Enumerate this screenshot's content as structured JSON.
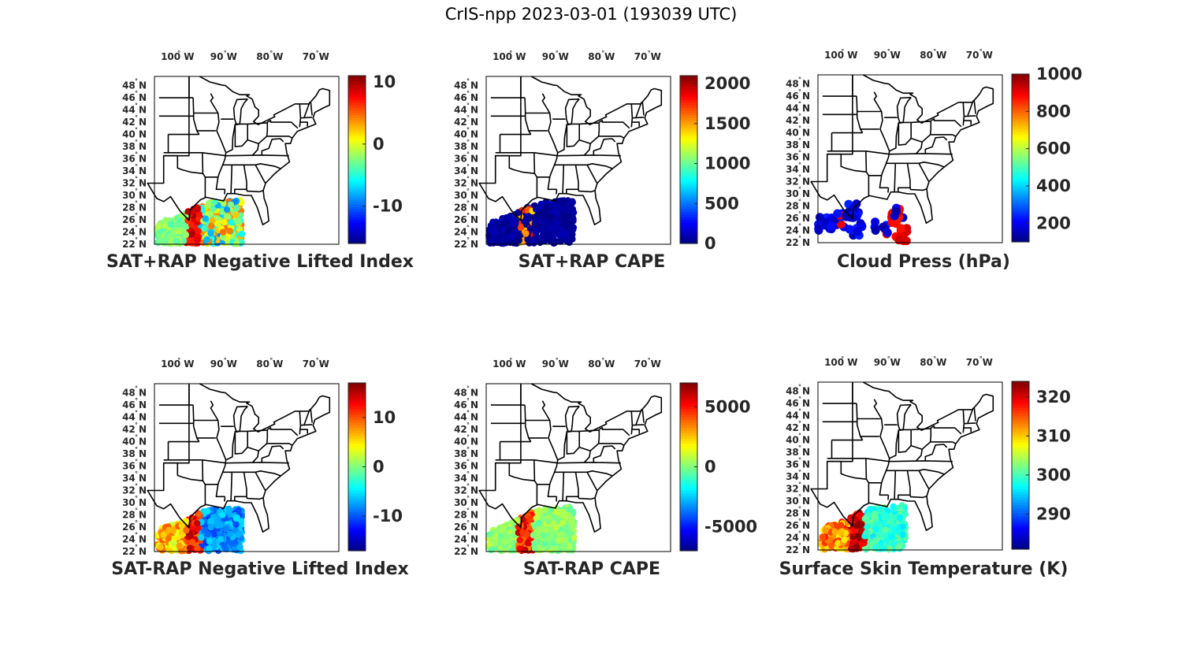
{
  "figure": {
    "title": "CrIS-npp 2023-03-01 (193039 UTC)"
  },
  "map": {
    "lat_ticks": [
      48,
      46,
      44,
      42,
      40,
      38,
      36,
      34,
      32,
      30,
      28,
      26,
      24,
      22
    ],
    "lon_ticks": [
      100,
      90,
      80,
      70
    ],
    "lat_suffix": "N",
    "lon_suffix": "W",
    "degree_symbol": "°",
    "extent": {
      "lon_min": -105,
      "lon_max": -65,
      "lat_min": 22,
      "lat_max": 49.5
    }
  },
  "chart_data": [
    {
      "type": "scatter",
      "title": "SAT+RAP Negative Lifted Index",
      "colormap": "jet",
      "clim": [
        -16,
        11
      ],
      "colorbar_ticks": [
        "10",
        "0",
        "-10"
      ],
      "colorbar_tick_values": [
        10,
        0,
        -10
      ],
      "point_region": "gulf-swath",
      "typical_value": -3
    },
    {
      "type": "scatter",
      "title": "SAT+RAP CAPE",
      "colormap": "jet",
      "clim": [
        0,
        2100
      ],
      "colorbar_ticks": [
        "2000",
        "1500",
        "1000",
        "500",
        "0"
      ],
      "colorbar_tick_values": [
        2000,
        1500,
        1000,
        500,
        0
      ],
      "point_region": "gulf-swath",
      "typical_value": 0
    },
    {
      "type": "scatter",
      "title": "Cloud Press (hPa)",
      "colormap": "jet",
      "clim": [
        100,
        1000
      ],
      "colorbar_ticks": [
        "1000",
        "800",
        "600",
        "400",
        "200"
      ],
      "colorbar_tick_values": [
        1000,
        800,
        600,
        400,
        200
      ],
      "point_region": "gulf-clusters",
      "typical_value": 150
    },
    {
      "type": "scatter",
      "title": "SAT-RAP Negative Lifted Index",
      "colormap": "jet",
      "clim": [
        -17,
        17
      ],
      "colorbar_ticks": [
        "10",
        "0",
        "-10"
      ],
      "colorbar_tick_values": [
        10,
        0,
        -10
      ],
      "point_region": "gulf-swath",
      "typical_value": -8
    },
    {
      "type": "scatter",
      "title": "SAT-RAP CAPE",
      "colormap": "jet",
      "clim": [
        -7000,
        7000
      ],
      "colorbar_ticks": [
        "5000",
        "0",
        "-5000"
      ],
      "colorbar_tick_values": [
        5000,
        0,
        -5000
      ],
      "point_region": "gulf-swath",
      "typical_value": 0
    },
    {
      "type": "scatter",
      "title": "Surface Skin Temperature (K)",
      "colormap": "jet",
      "clim": [
        281,
        324
      ],
      "colorbar_ticks": [
        "320",
        "310",
        "300",
        "290"
      ],
      "colorbar_tick_values": [
        320,
        310,
        300,
        290
      ],
      "point_region": "gulf-swath",
      "typical_value": 298
    }
  ]
}
